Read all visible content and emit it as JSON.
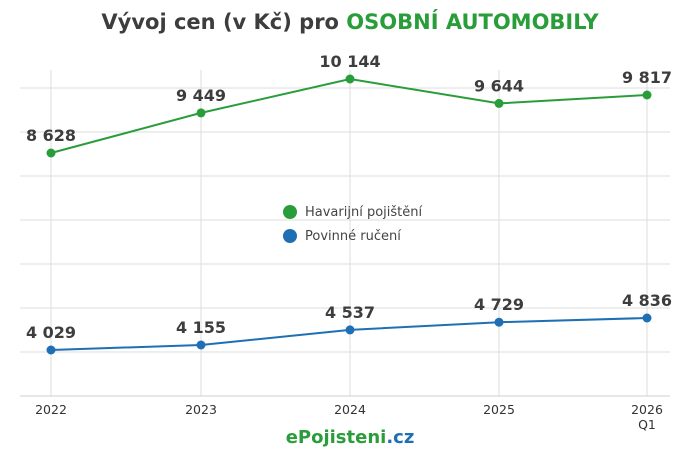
{
  "title": {
    "prefix": "Vývoj cen (v Kč) pro ",
    "highlight": "OSOBNÍ AUTOMOBILY"
  },
  "brand": {
    "part1": "ePojisteni",
    "part2": ".cz"
  },
  "colors": {
    "green": "#2a9d3b",
    "blue": "#1f6fb4",
    "grid": "#dcdcdc",
    "text": "#3d3d3d"
  },
  "chart_data": {
    "type": "line",
    "categories": [
      "2022",
      "2023",
      "2024",
      "2025",
      "2026 Q1"
    ],
    "category_lines": [
      [
        "2022"
      ],
      [
        "2023"
      ],
      [
        "2024"
      ],
      [
        "2025"
      ],
      [
        "2026",
        "Q1"
      ]
    ],
    "series": [
      {
        "name": "Havarijní pojištění",
        "color": "#2a9d3b",
        "values": [
          8628,
          9449,
          10144,
          9644,
          9817
        ],
        "labels": [
          "8 628",
          "9 449",
          "10 144",
          "9 644",
          "9 817"
        ]
      },
      {
        "name": "Povinné ručení",
        "color": "#1f6fb4",
        "values": [
          4029,
          4155,
          4537,
          4729,
          4836
        ],
        "labels": [
          "4 029",
          "4 155",
          "4 537",
          "4 729",
          "4 836"
        ]
      }
    ],
    "grid": true,
    "legend": "center"
  }
}
